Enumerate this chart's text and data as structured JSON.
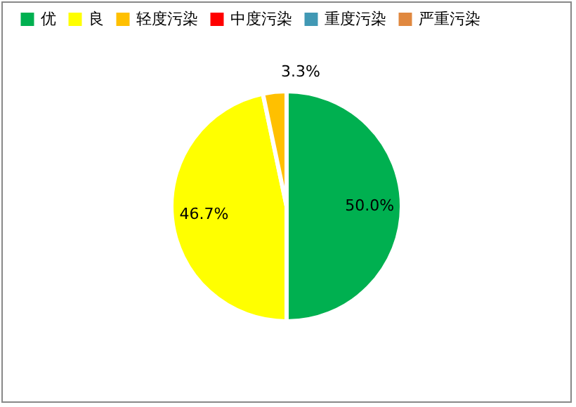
{
  "chart_data": {
    "type": "pie",
    "categories": [
      "优",
      "良",
      "轻度污染",
      "中度污染",
      "重度污染",
      "严重污染"
    ],
    "values": [
      50.0,
      46.7,
      3.3,
      0,
      0,
      0
    ],
    "colors": [
      "#00b050",
      "#ffff00",
      "#ffc000",
      "#ff0000",
      "#4198b4",
      "#e0883f"
    ],
    "value_labels": [
      "50.0%",
      "46.7%",
      "3.3%",
      null,
      null,
      null
    ],
    "legend": "top"
  }
}
